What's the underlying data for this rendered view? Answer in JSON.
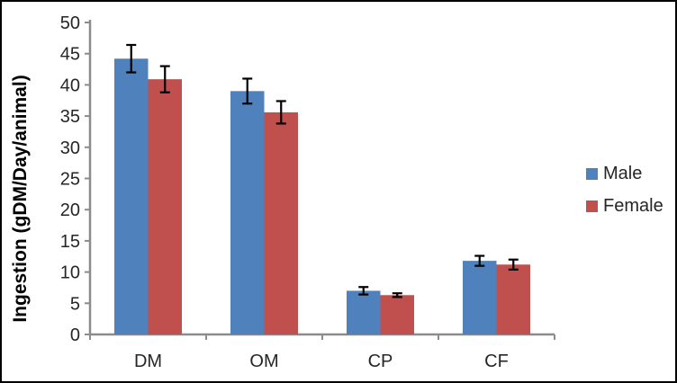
{
  "figure": {
    "background": "#FFFFFF",
    "border_color": "#000000"
  },
  "chart_data": {
    "type": "bar",
    "title": "",
    "xlabel": "",
    "ylabel": "Ingestion (gDM/Day/animal)",
    "categories": [
      "DM",
      "OM",
      "CP",
      "CF"
    ],
    "series": [
      {
        "name": "Male",
        "color": "#4F81BD",
        "values": [
          44.2,
          39.0,
          7.0,
          11.8
        ],
        "error_bars": [
          2.2,
          2.0,
          0.6,
          0.8
        ]
      },
      {
        "name": "Female",
        "color": "#C0504D",
        "values": [
          40.9,
          35.6,
          6.3,
          11.2
        ],
        "error_bars": [
          2.1,
          1.8,
          0.3,
          0.8
        ]
      }
    ],
    "ylim": [
      0,
      50
    ],
    "yticks": [
      0,
      5,
      10,
      15,
      20,
      25,
      30,
      35,
      40,
      45,
      50
    ],
    "grid": false,
    "legend_position": "right",
    "error_bars_shown": true,
    "axis_color": "#8C8C8C",
    "error_bar_color": "#000000",
    "text_color": "#262626"
  }
}
